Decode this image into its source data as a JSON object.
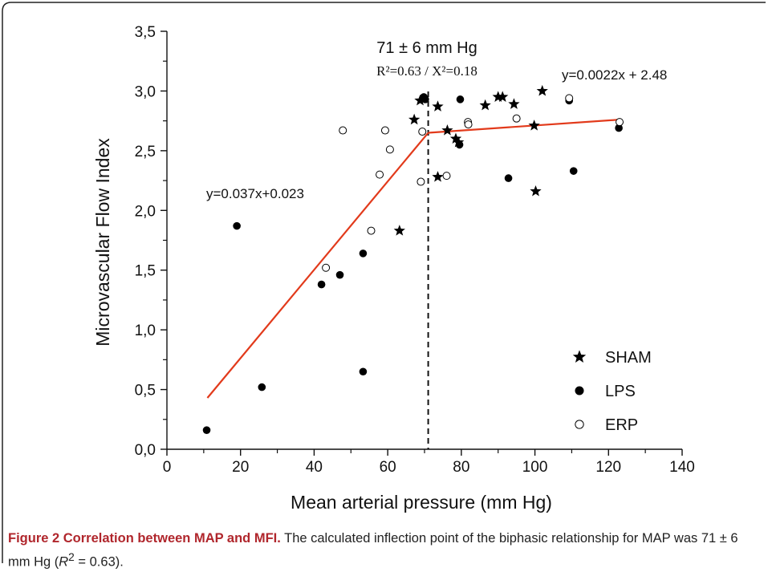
{
  "chart_data": {
    "type": "scatter",
    "xlabel": "Mean arterial pressure (mm Hg)",
    "ylabel": "Microvascular Flow Index",
    "xlim": [
      0,
      140
    ],
    "ylim": [
      0,
      3.5
    ],
    "x_ticks": [
      {
        "v": 0,
        "label": "0"
      },
      {
        "v": 20,
        "label": "20"
      },
      {
        "v": 40,
        "label": "40"
      },
      {
        "v": 60,
        "label": "60"
      },
      {
        "v": 80,
        "label": "80"
      },
      {
        "v": 100,
        "label": "100"
      },
      {
        "v": 120,
        "label": "120"
      },
      {
        "v": 140,
        "label": "140"
      }
    ],
    "y_ticks": [
      {
        "v": 0,
        "label": "0,0"
      },
      {
        "v": 0.5,
        "label": "0,5"
      },
      {
        "v": 1.0,
        "label": "1,0"
      },
      {
        "v": 1.5,
        "label": "1,5"
      },
      {
        "v": 2.0,
        "label": "2,0"
      },
      {
        "v": 2.5,
        "label": "2,5"
      },
      {
        "v": 3.0,
        "label": "3,0"
      },
      {
        "v": 3.5,
        "label": "3,5"
      }
    ],
    "grid": false,
    "legend_position": "bottom-right",
    "series": [
      {
        "name": "SHAM",
        "marker": "star",
        "color": "#000000",
        "points": [
          [
            63.2,
            1.83
          ],
          [
            67.2,
            2.76
          ],
          [
            68.8,
            2.92
          ],
          [
            73.6,
            2.87
          ],
          [
            73.6,
            2.28
          ],
          [
            76.2,
            2.67
          ],
          [
            78.5,
            2.6
          ],
          [
            79.2,
            2.57
          ],
          [
            86.5,
            2.88
          ],
          [
            90.0,
            2.95
          ],
          [
            91.2,
            2.95
          ],
          [
            94.3,
            2.89
          ],
          [
            99.8,
            2.71
          ],
          [
            100.2,
            2.16
          ],
          [
            102.0,
            3.0
          ]
        ]
      },
      {
        "name": "LPS",
        "marker": "filled-circle",
        "color": "#000000",
        "points": [
          [
            10.8,
            0.16
          ],
          [
            19.0,
            1.87
          ],
          [
            25.8,
            0.52
          ],
          [
            42.0,
            1.38
          ],
          [
            47.0,
            1.46
          ],
          [
            53.3,
            1.64
          ],
          [
            53.3,
            0.65
          ],
          [
            69.8,
            2.95
          ],
          [
            70.2,
            2.93
          ],
          [
            79.7,
            2.93
          ],
          [
            79.5,
            2.55
          ],
          [
            92.8,
            2.27
          ],
          [
            109.3,
            2.92
          ],
          [
            110.5,
            2.33
          ],
          [
            122.8,
            2.69
          ]
        ]
      },
      {
        "name": "ERP",
        "marker": "open-circle",
        "color": "#000000",
        "points": [
          [
            43.2,
            1.52
          ],
          [
            47.8,
            2.67
          ],
          [
            55.5,
            1.83
          ],
          [
            57.8,
            2.3
          ],
          [
            59.3,
            2.67
          ],
          [
            60.6,
            2.51
          ],
          [
            69.0,
            2.24
          ],
          [
            69.4,
            2.66
          ],
          [
            76.0,
            2.29
          ],
          [
            81.8,
            2.74
          ],
          [
            81.9,
            2.72
          ],
          [
            95.0,
            2.77
          ],
          [
            109.3,
            2.94
          ],
          [
            123.0,
            2.74
          ]
        ]
      }
    ],
    "fit_lines": [
      {
        "name": "y=0.037x+0.023",
        "x": [
          11,
          71
        ],
        "y": [
          0.43,
          2.65
        ],
        "color": "#e23a1b"
      },
      {
        "name": "y=0.0022x + 2.48",
        "x": [
          71,
          123
        ],
        "y": [
          2.65,
          2.76
        ],
        "color": "#e23a1b"
      }
    ],
    "inflection_x": 71,
    "annotations": {
      "inflection": "71 ± 6 mm Hg",
      "stats": "R²=0.63 / Χ²=0.18",
      "eq_left": "y=0.037x+0.023",
      "eq_right": "y=0.0022x + 2.48"
    }
  },
  "caption": {
    "title": "Figure 2 Correlation between MAP and MFI.",
    "text_before": " The calculated inflection point of the biphasic relationship for MAP was 71 ± 6 mm Hg (",
    "r_symbol": "R",
    "superscript": "2",
    "text_after": " = 0.63)."
  }
}
